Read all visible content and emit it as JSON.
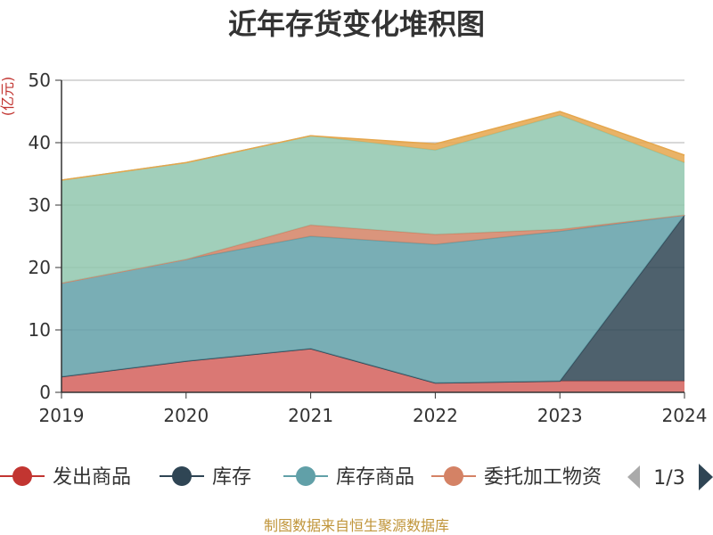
{
  "chart_data": {
    "type": "area",
    "stacked": true,
    "title": "近年存货变化堆积图",
    "y_unit": "(亿元)",
    "x": [
      "2019",
      "2020",
      "2021",
      "2022",
      "2023",
      "2024"
    ],
    "ylim": [
      0,
      50
    ],
    "yticks": [
      0,
      10,
      20,
      30,
      40,
      50
    ],
    "grid": true,
    "legend_position": "bottom",
    "series": [
      {
        "name": "发出商品",
        "color": "#d4605c",
        "values": [
          2.5,
          5.0,
          7.0,
          1.5,
          1.8,
          1.8
        ]
      },
      {
        "name": "库存",
        "color": "#2f4554",
        "values": [
          0,
          0,
          0,
          0,
          0,
          26.6
        ]
      },
      {
        "name": "库存商品",
        "color": "#61a0a8",
        "values": [
          15.0,
          16.3,
          18.0,
          22.2,
          24.0,
          0
        ]
      },
      {
        "name": "委托加工物资",
        "color": "#d48265",
        "values": [
          0,
          0,
          1.8,
          1.6,
          0.3,
          0
        ]
      },
      {
        "name": "",
        "color": "#91c7ae",
        "values": [
          16.5,
          15.5,
          14.3,
          13.5,
          18.3,
          8.4
        ]
      },
      {
        "name": "",
        "color": "#e5a64c",
        "values": [
          0,
          0,
          0,
          1.0,
          0.6,
          1.2
        ]
      }
    ]
  },
  "legend": {
    "items": [
      {
        "label": "发出商品",
        "color": "#c23531"
      },
      {
        "label": "库存",
        "color": "#2f4554"
      },
      {
        "label": "库存商品",
        "color": "#61a0a8"
      },
      {
        "label": "委托加工物资",
        "color": "#d48265"
      }
    ],
    "page_text": "1/3"
  },
  "source_text": "制图数据来自恒生聚源数据库"
}
